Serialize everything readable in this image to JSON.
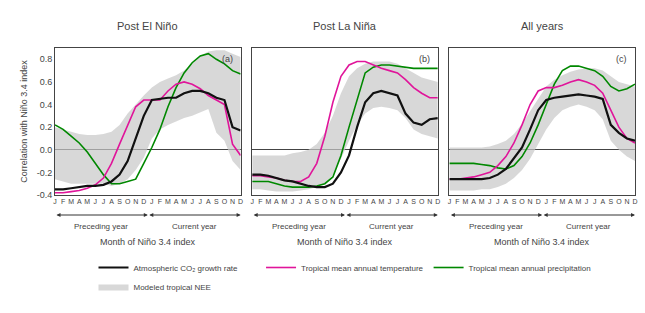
{
  "chart_data": [
    {
      "type": "line",
      "title": "Post El Niño",
      "panel_label": "(a)",
      "x_label": "Month of Niño 3.4 index",
      "y_label": "Correlation with Niño 3.4 index",
      "annotations": [
        "Preceding year",
        "Current year"
      ],
      "categories": [
        "J",
        "F",
        "M",
        "A",
        "M",
        "J",
        "J",
        "A",
        "S",
        "O",
        "N",
        "D",
        "J",
        "F",
        "M",
        "A",
        "M",
        "J",
        "J",
        "A",
        "S",
        "O",
        "N",
        "D"
      ],
      "ylim": [
        -0.4,
        0.9
      ],
      "yticks": [
        -0.4,
        -0.2,
        {
          "value": 0,
          "label": "0.0"
        },
        0.2,
        0.4,
        0.6,
        0.8
      ],
      "grid": false,
      "series": [
        {
          "color": "#111111",
          "values": [
            -0.35,
            -0.35,
            -0.34,
            -0.33,
            -0.32,
            -0.32,
            -0.31,
            -0.28,
            -0.22,
            -0.1,
            0.1,
            0.3,
            0.44,
            0.45,
            0.46,
            0.46,
            0.5,
            0.52,
            0.52,
            0.5,
            0.46,
            0.44,
            0.2,
            0.17
          ]
        },
        {
          "color": "#e0159a",
          "values": [
            -0.38,
            -0.38,
            -0.37,
            -0.36,
            -0.34,
            -0.31,
            -0.25,
            -0.12,
            0.05,
            0.22,
            0.38,
            0.44,
            0.44,
            0.44,
            0.52,
            0.58,
            0.6,
            0.58,
            0.54,
            0.48,
            0.44,
            0.4,
            0.05,
            -0.05
          ]
        },
        {
          "color": "#008800",
          "values": [
            0.22,
            0.18,
            0.12,
            0.06,
            -0.02,
            -0.12,
            -0.22,
            -0.3,
            -0.3,
            -0.28,
            -0.26,
            -0.12,
            0.02,
            0.18,
            0.38,
            0.55,
            0.68,
            0.77,
            0.83,
            0.85,
            0.8,
            0.76,
            0.7,
            0.67
          ]
        },
        {
          "type": "area",
          "color": "#c8c8c8",
          "upper": [
            0.2,
            0.18,
            0.16,
            0.14,
            0.13,
            0.13,
            0.14,
            0.16,
            0.22,
            0.32,
            0.4,
            0.48,
            0.55,
            0.6,
            0.63,
            0.66,
            0.7,
            0.76,
            0.83,
            0.87,
            0.88,
            0.88,
            0.85,
            0.82
          ],
          "lower": [
            -0.26,
            -0.28,
            -0.3,
            -0.3,
            -0.3,
            -0.3,
            -0.3,
            -0.32,
            -0.3,
            -0.26,
            -0.18,
            -0.07,
            0.1,
            0.18,
            0.22,
            0.25,
            0.28,
            0.3,
            0.33,
            0.36,
            0.15,
            0.08,
            -0.1,
            -0.18
          ]
        }
      ],
      "peak_markers": [
        {
          "marker": "triangle-up",
          "color": "#e0159a",
          "x": 0.22
        },
        {
          "marker": "circle",
          "color": "#111111",
          "x": 0.27
        },
        {
          "marker": "square",
          "color": "#008800",
          "x": 0.72
        }
      ]
    },
    {
      "type": "line",
      "title": "Post La Niña",
      "panel_label": "(b)",
      "x_label": "Month of Niño 3.4 index",
      "annotations": [
        "Preceding year",
        "Current year"
      ],
      "categories": [
        "J",
        "F",
        "M",
        "A",
        "M",
        "J",
        "J",
        "A",
        "S",
        "O",
        "N",
        "D",
        "J",
        "F",
        "M",
        "A",
        "M",
        "J",
        "J",
        "A",
        "S",
        "O",
        "N",
        "D"
      ],
      "ylim": [
        -0.4,
        0.9
      ],
      "yticks": [
        -0.4,
        -0.2,
        {
          "value": 0,
          "label": "0.0"
        },
        0.2,
        0.4,
        0.6,
        0.8
      ],
      "grid": false,
      "tick_labels": "x",
      "series": [
        {
          "color": "#111111",
          "values": [
            -0.22,
            -0.22,
            -0.23,
            -0.25,
            -0.27,
            -0.28,
            -0.3,
            -0.32,
            -0.33,
            -0.33,
            -0.3,
            -0.2,
            -0.05,
            0.2,
            0.42,
            0.5,
            0.52,
            0.5,
            0.48,
            0.32,
            0.24,
            0.22,
            0.27,
            0.28
          ]
        },
        {
          "color": "#e0159a",
          "values": [
            -0.23,
            -0.23,
            -0.24,
            -0.25,
            -0.27,
            -0.28,
            -0.28,
            -0.24,
            -0.12,
            0.12,
            0.42,
            0.65,
            0.75,
            0.78,
            0.78,
            0.75,
            0.72,
            0.7,
            0.68,
            0.62,
            0.55,
            0.5,
            0.46,
            0.46
          ]
        },
        {
          "color": "#008800",
          "values": [
            -0.28,
            -0.28,
            -0.28,
            -0.3,
            -0.32,
            -0.33,
            -0.33,
            -0.33,
            -0.32,
            -0.3,
            -0.24,
            -0.05,
            0.2,
            0.45,
            0.68,
            0.73,
            0.75,
            0.75,
            0.74,
            0.73,
            0.72,
            0.72,
            0.72,
            0.72
          ]
        },
        {
          "type": "area",
          "color": "#c8c8c8",
          "upper": [
            -0.05,
            -0.05,
            -0.05,
            -0.05,
            -0.05,
            -0.03,
            -0.02,
            0.0,
            0.05,
            0.15,
            0.3,
            0.5,
            0.65,
            0.72,
            0.76,
            0.78,
            0.78,
            0.78,
            0.76,
            0.72,
            0.68,
            0.64,
            0.62,
            0.6
          ],
          "lower": [
            -0.35,
            -0.35,
            -0.36,
            -0.37,
            -0.37,
            -0.37,
            -0.36,
            -0.35,
            -0.33,
            -0.3,
            -0.22,
            -0.08,
            0.08,
            0.22,
            0.32,
            0.37,
            0.38,
            0.37,
            0.35,
            0.28,
            0.18,
            0.14,
            0.12,
            0.1
          ]
        }
      ],
      "peak_markers": [
        {
          "marker": "triangle-up",
          "color": "#e0159a",
          "x": 0.15
        },
        {
          "marker": "circle",
          "color": "#111111",
          "x": 0.47
        },
        {
          "marker": "square",
          "color": "#008800",
          "x": 0.47
        }
      ]
    },
    {
      "type": "line",
      "title": "All years",
      "panel_label": "(c)",
      "x_label": "Month of Niño 3.4 index",
      "annotations": [
        "Preceding year",
        "Current year"
      ],
      "categories": [
        "J",
        "F",
        "M",
        "A",
        "M",
        "J",
        "J",
        "A",
        "S",
        "O",
        "N",
        "D",
        "J",
        "F",
        "M",
        "A",
        "M",
        "J",
        "J",
        "A",
        "S",
        "O",
        "N",
        "D"
      ],
      "ylim": [
        -0.4,
        0.9
      ],
      "yticks": [
        -0.4,
        -0.2,
        {
          "value": 0,
          "label": "0.0"
        },
        0.2,
        0.4,
        0.6,
        0.8
      ],
      "grid": false,
      "tick_labels": "x",
      "legend": "bottom",
      "series": [
        {
          "name": "Atmospheric CO₂ growth rate",
          "color": "#111111",
          "values": [
            -0.26,
            -0.26,
            -0.26,
            -0.26,
            -0.26,
            -0.25,
            -0.22,
            -0.17,
            -0.08,
            0.02,
            0.18,
            0.35,
            0.44,
            0.46,
            0.47,
            0.48,
            0.49,
            0.48,
            0.47,
            0.45,
            0.22,
            0.15,
            0.1,
            0.08
          ]
        },
        {
          "name": "Tropical mean annual temperature",
          "color": "#e0159a",
          "values": [
            -0.26,
            -0.26,
            -0.25,
            -0.24,
            -0.22,
            -0.2,
            -0.14,
            -0.06,
            0.06,
            0.22,
            0.4,
            0.52,
            0.55,
            0.55,
            0.57,
            0.6,
            0.62,
            0.6,
            0.57,
            0.5,
            0.35,
            0.2,
            0.1,
            0.06
          ]
        },
        {
          "name": "Tropical mean annual precipitation",
          "color": "#008800",
          "values": [
            -0.12,
            -0.12,
            -0.12,
            -0.12,
            -0.13,
            -0.14,
            -0.16,
            -0.17,
            -0.14,
            -0.06,
            0.06,
            0.22,
            0.4,
            0.58,
            0.7,
            0.74,
            0.74,
            0.72,
            0.7,
            0.65,
            0.56,
            0.52,
            0.54,
            0.58
          ]
        },
        {
          "name": "Modeled tropical NEE",
          "type": "area",
          "color": "#c8c8c8",
          "upper": [
            0.02,
            0.02,
            0.02,
            0.02,
            0.02,
            0.03,
            0.05,
            0.08,
            0.14,
            0.23,
            0.34,
            0.46,
            0.56,
            0.62,
            0.66,
            0.69,
            0.71,
            0.72,
            0.72,
            0.7,
            0.65,
            0.6,
            0.58,
            0.56
          ],
          "lower": [
            -0.36,
            -0.36,
            -0.36,
            -0.36,
            -0.35,
            -0.35,
            -0.33,
            -0.3,
            -0.25,
            -0.18,
            -0.08,
            0.05,
            0.18,
            0.28,
            0.35,
            0.38,
            0.4,
            0.38,
            0.35,
            0.27,
            0.08,
            0.0,
            -0.06,
            -0.1
          ]
        }
      ],
      "peak_markers": [
        {
          "marker": "triangle-up",
          "color": "#e0159a",
          "x": 0.1
        },
        {
          "marker": "circle",
          "color": "#111111",
          "x": 0.15
        },
        {
          "marker": "square",
          "color": "#008800",
          "x": 0.6
        }
      ]
    }
  ]
}
